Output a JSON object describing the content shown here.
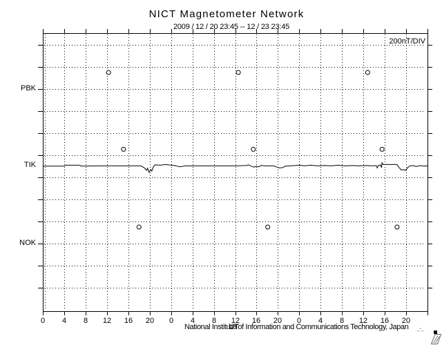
{
  "title": "NICT Magnetometer Network",
  "subtitle": "2009 / 12 / 20   23:45 -- 12 / 23   23:45",
  "scale_label": "200nT/DIV",
  "footer": {
    "credit": "National Institute of Information and Communications Technology, Japan",
    "axis_unit_label": "UT",
    "stamp": ",,'',.."
  },
  "chart_data": {
    "type": "line",
    "title": "NICT Magnetometer Network",
    "time_range": {
      "start": "2009/12/20 23:45",
      "end": "2009/12/23 23:45",
      "unit": "UT",
      "hours": 72
    },
    "x_axis": {
      "major_tick_hours": 4,
      "labels_cycle": [
        0,
        4,
        8,
        12,
        16,
        20
      ],
      "days": 3,
      "grid": "dotted"
    },
    "y_axis": {
      "nt_per_div": 200,
      "divisions": 12,
      "grid": "dotted"
    },
    "stations": [
      {
        "name": "PBK",
        "baseline_div": 2.0,
        "daily_points_ut": [
          12.3,
          36.6,
          60.8
        ],
        "daily_points_nt": 150
      },
      {
        "name": "TIK",
        "baseline_div": 5.48,
        "daily_points_ut": [
          15.1,
          39.4,
          63.5
        ],
        "daily_points_nt": 150,
        "trace_ut_nt": [
          [
            0,
            -3
          ],
          [
            4,
            -3
          ],
          [
            4.3,
            6
          ],
          [
            6.9,
            6
          ],
          [
            7.2,
            -3
          ],
          [
            11,
            0
          ],
          [
            18.3,
            0
          ],
          [
            18.7,
            -9
          ],
          [
            19.1,
            -22
          ],
          [
            19.4,
            -41
          ],
          [
            19.6,
            -22
          ],
          [
            19.9,
            -59
          ],
          [
            20.2,
            -34
          ],
          [
            20.4,
            -47
          ],
          [
            20.7,
            -9
          ],
          [
            21,
            9
          ],
          [
            22,
            6
          ],
          [
            23,
            12
          ],
          [
            24,
            6
          ],
          [
            24.6,
            3
          ],
          [
            25.2,
            -3
          ],
          [
            25.6,
            -9
          ],
          [
            26.1,
            -6
          ],
          [
            26.6,
            0
          ],
          [
            30,
            0
          ],
          [
            36,
            0
          ],
          [
            38.1,
            3
          ],
          [
            38.5,
            9
          ],
          [
            39,
            -3
          ],
          [
            39.6,
            -12
          ],
          [
            39.9,
            -3
          ],
          [
            40.3,
            -9
          ],
          [
            40.9,
            3
          ],
          [
            41.6,
            0
          ],
          [
            43.2,
            0
          ],
          [
            43.7,
            -9
          ],
          [
            44.3,
            -19
          ],
          [
            44.9,
            -16
          ],
          [
            45.4,
            -3
          ],
          [
            46.3,
            0
          ],
          [
            48.2,
            6
          ],
          [
            48.9,
            0
          ],
          [
            50.2,
            6
          ],
          [
            51.4,
            0
          ],
          [
            52.7,
            3
          ],
          [
            54,
            0
          ],
          [
            55.3,
            6
          ],
          [
            56.6,
            0
          ],
          [
            57.9,
            3
          ],
          [
            59.2,
            0
          ],
          [
            60.5,
            3
          ],
          [
            61.8,
            0
          ],
          [
            62.4,
            3
          ],
          [
            62.6,
            -19
          ],
          [
            62.8,
            3
          ],
          [
            63.2,
            9
          ],
          [
            63.4,
            -16
          ],
          [
            63.5,
            28
          ],
          [
            63.7,
            12
          ],
          [
            65,
            12
          ],
          [
            66.3,
            12
          ],
          [
            66.7,
            -16
          ],
          [
            67.1,
            -38
          ],
          [
            67.5,
            -34
          ],
          [
            67.9,
            -41
          ],
          [
            68.3,
            -16
          ],
          [
            68.6,
            -3
          ],
          [
            69.3,
            3
          ],
          [
            69.9,
            -6
          ],
          [
            70.6,
            3
          ],
          [
            71.2,
            -3
          ],
          [
            72,
            0
          ]
        ]
      },
      {
        "name": "NOK",
        "baseline_div": 9.0,
        "daily_points_ut": [
          18.0,
          42.1,
          66.3
        ],
        "daily_points_nt": 150
      }
    ]
  }
}
